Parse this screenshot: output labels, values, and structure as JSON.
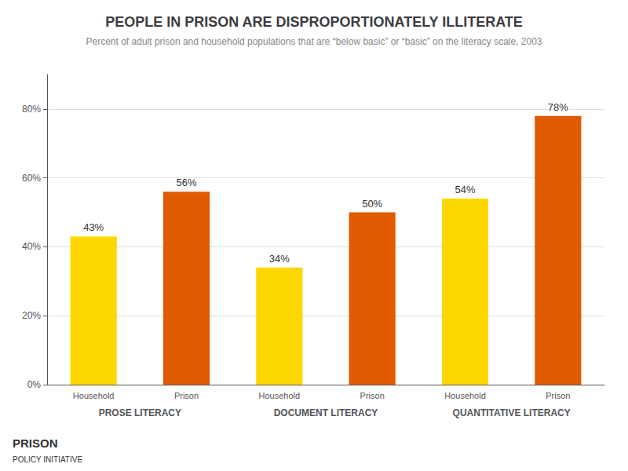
{
  "chart_data": {
    "type": "bar",
    "title": "PEOPLE IN PRISON ARE DISPROPORTIONATELY ILLITERATE",
    "subtitle": "Percent of adult prison and household populations that are “below basic” or “basic” on the literacy scale, 2003",
    "categories": [
      "PROSE LITERACY",
      "DOCUMENT LITERACY",
      "QUANTITATIVE LITERACY"
    ],
    "series": [
      {
        "name": "Household",
        "color": "#FFD700",
        "values": [
          0.43,
          0.34,
          0.54
        ],
        "value_labels": [
          "43%",
          "34%",
          "54%"
        ]
      },
      {
        "name": "Prison",
        "color": "#E05A00",
        "values": [
          0.56,
          0.5,
          0.78
        ],
        "value_labels": [
          "56%",
          "50%",
          "78%"
        ]
      }
    ],
    "ylim": [
      0,
      0.9
    ],
    "yticks": [
      {
        "value": 0,
        "label": "0%"
      },
      {
        "value": 0.2,
        "label": "20%"
      },
      {
        "value": 0.4,
        "label": "40%"
      },
      {
        "value": 0.6,
        "label": "60%"
      },
      {
        "value": 0.8,
        "label": "80%"
      }
    ],
    "grid": true,
    "data_labels": true,
    "annotations": [
      "PRISON",
      "POLICY INITIATIVE"
    ]
  }
}
